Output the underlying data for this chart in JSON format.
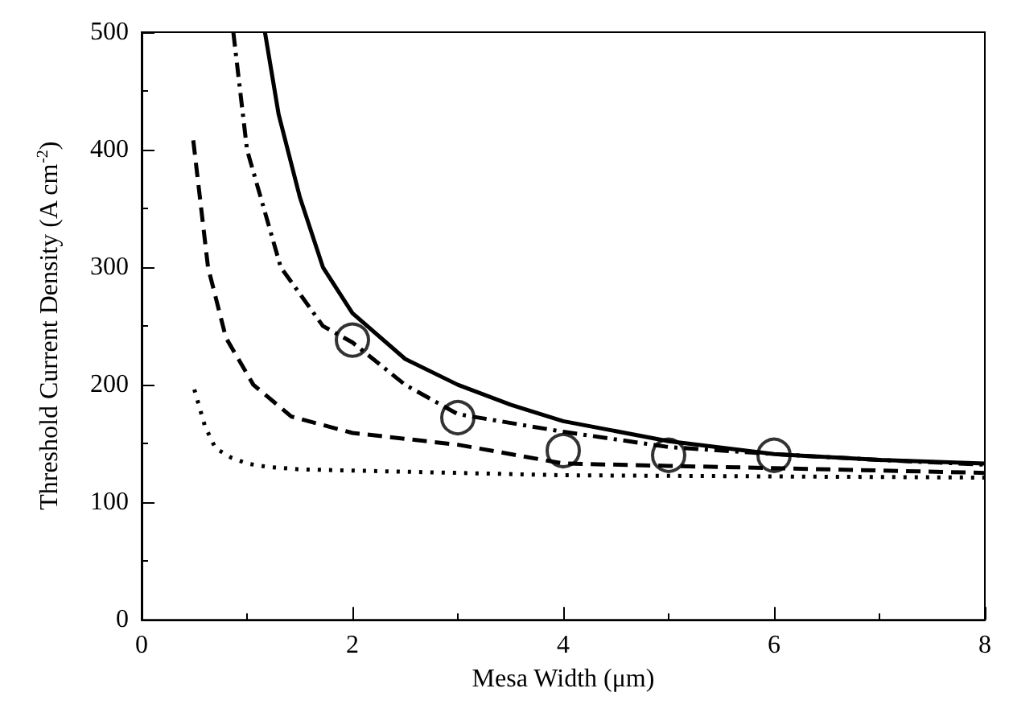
{
  "chart_data": {
    "type": "line",
    "xlabel": "Mesa Width (μm)",
    "ylabel": "Threshold Current Density (A cm$^{-2}$)",
    "xlim": [
      0,
      8
    ],
    "xticks": [
      0,
      2,
      4,
      6,
      8
    ],
    "ylim": [
      0,
      500
    ],
    "yticks": [
      0,
      100,
      200,
      300,
      400,
      500
    ],
    "grid": false,
    "series": [
      {
        "color": "#000000",
        "line_style": "solid",
        "marker": "none",
        "x": [
          1.17,
          1.3,
          1.5,
          1.72,
          2,
          2.5,
          3,
          3.5,
          4,
          5,
          6,
          7,
          8
        ],
        "values": [
          500,
          430,
          360,
          300,
          261,
          222,
          200,
          183,
          169,
          152,
          141,
          136,
          133
        ]
      },
      {
        "color": "#000000",
        "line_style": "dashdot",
        "marker": "none",
        "x": [
          0.87,
          1.0,
          1.32,
          1.72,
          2,
          2.5,
          3,
          4,
          5,
          6,
          7,
          8
        ],
        "values": [
          500,
          400,
          300,
          250,
          236,
          200,
          175,
          160,
          147,
          141,
          136,
          132
        ]
      },
      {
        "color": "#000000",
        "line_style": "dashed",
        "marker": "none",
        "x": [
          0.49,
          0.63,
          0.8,
          1.06,
          1.42,
          2,
          3,
          4,
          5,
          6,
          7,
          8
        ],
        "values": [
          408,
          300,
          240,
          200,
          173,
          159,
          149,
          133,
          131,
          129,
          127,
          125
        ]
      },
      {
        "color": "#000000",
        "line_style": "dotted",
        "marker": "none",
        "x": [
          0.5,
          0.6,
          0.7,
          0.85,
          1.0,
          1.2,
          1.5,
          2,
          3,
          4,
          6,
          8
        ],
        "values": [
          196,
          165,
          146,
          138,
          133,
          130,
          128,
          127,
          125,
          123,
          122,
          121
        ]
      },
      {
        "type": "scatter",
        "color": "#000000",
        "marker": "circle",
        "x": [
          2,
          3,
          4,
          5,
          6
        ],
        "values": [
          238,
          172,
          144,
          140,
          140
        ]
      }
    ]
  }
}
